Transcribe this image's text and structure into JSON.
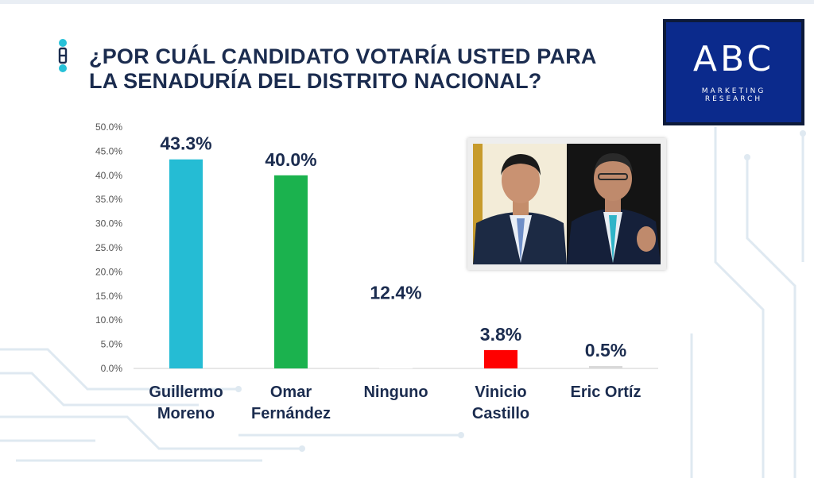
{
  "title": {
    "line1": "¿POR CUÁL CANDIDATO VOTARÍA USTED PARA",
    "line2": "LA SENADURÍA DEL DISTRITO NACIONAL?"
  },
  "logo": {
    "mark": "ABC",
    "sub1": "MARKETING",
    "sub2": "RESEARCH"
  },
  "icons": {
    "title": "pin-link-icon"
  },
  "colors": {
    "title": "#1b2c4f",
    "logo_bg": "#0b2a8c"
  },
  "chart_data": {
    "type": "bar",
    "categories": [
      [
        "Guillermo",
        "Moreno"
      ],
      [
        "Omar",
        "Fernández"
      ],
      [
        "Ninguno"
      ],
      [
        "Vinicio",
        "Castillo"
      ],
      [
        "Eric Ortíz"
      ]
    ],
    "values": [
      43.3,
      40.0,
      12.4,
      3.8,
      0.5
    ],
    "value_labels": [
      "43.3%",
      "40.0%",
      "12.4%",
      "3.8%",
      "0.5%"
    ],
    "bar_colors": [
      "#25bcd4",
      "#1bb24e",
      "#ffffff",
      "#ff0000",
      "#d9d9d9"
    ],
    "ylim": [
      0,
      50
    ],
    "yticks": [
      "0.0%",
      "5.0%",
      "10.0%",
      "15.0%",
      "20.0%",
      "25.0%",
      "30.0%",
      "35.0%",
      "40.0%",
      "45.0%",
      "50.0%"
    ],
    "grid": false,
    "legend": "none"
  }
}
